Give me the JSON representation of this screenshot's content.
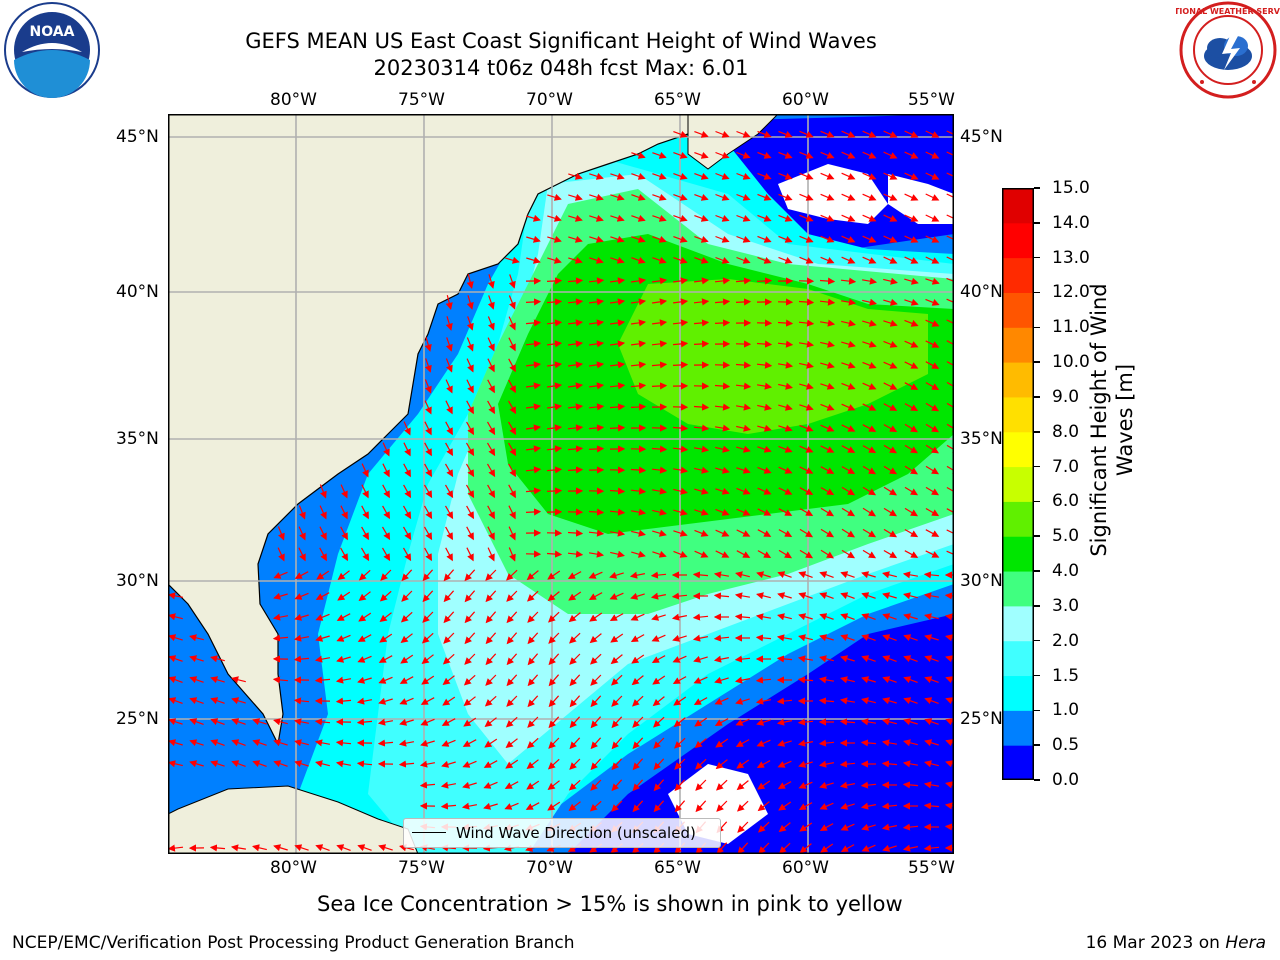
{
  "header": {
    "title_line1": "GEFS MEAN US East Coast Significant Height of Wind Waves",
    "title_line2": "20230314 t06z 048h fcst   Max: 6.01"
  },
  "logos": {
    "left": {
      "name": "noaa-logo",
      "text": "NOAA"
    },
    "right": {
      "name": "national-weather-service-logo",
      "text": "NATIONAL WEATHER SERVICE"
    }
  },
  "map": {
    "lon_labels": [
      "80°W",
      "75°W",
      "70°W",
      "65°W",
      "60°W",
      "55°W"
    ],
    "lat_labels": [
      "45°N",
      "40°N",
      "35°N",
      "30°N",
      "25°N"
    ],
    "legend": "Wind Wave Direction (unscaled)",
    "land_color": "#efefdc",
    "arrow_color": "#ff0000",
    "grid_color": "#b0b0b0"
  },
  "colorbar": {
    "label_line1": "Significant Height of Wind",
    "label_line2": "Waves [m]",
    "ticks": [
      "0.0",
      "0.5",
      "1.0",
      "1.5",
      "2.0",
      "3.0",
      "4.0",
      "5.0",
      "6.0",
      "7.0",
      "8.0",
      "9.0",
      "10.0",
      "11.0",
      "12.0",
      "13.0",
      "14.0",
      "15.0"
    ],
    "colors": [
      "#0000ff",
      "#0080ff",
      "#00ffff",
      "#40ffff",
      "#a0ffff",
      "#40ff80",
      "#00e600",
      "#60f000",
      "#c8ff00",
      "#ffff00",
      "#ffe000",
      "#ffbb00",
      "#ff8800",
      "#ff5500",
      "#ff2a00",
      "#ff0000",
      "#e00000"
    ]
  },
  "caption": "Sea Ice Concentration > 15% is shown in pink to yellow",
  "footer": {
    "left": "NCEP/EMC/Verification Post Processing Product Generation Branch",
    "right_prefix": "16 Mar 2023 on ",
    "right_italic": "Hera"
  }
}
